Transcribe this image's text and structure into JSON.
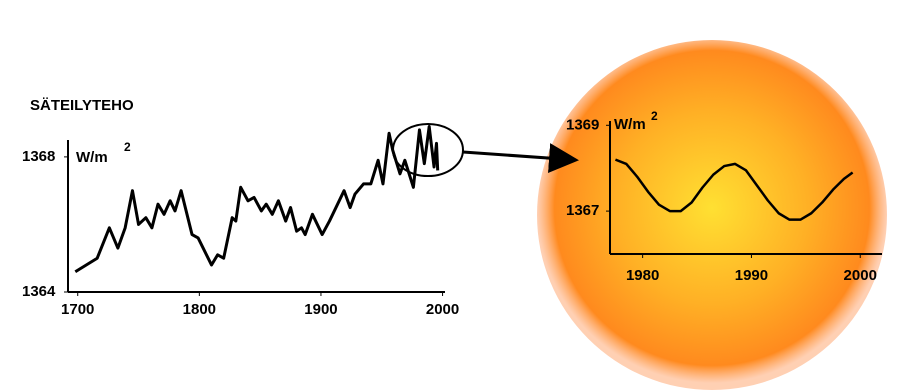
{
  "chart_data": [
    {
      "type": "line",
      "title": "SÄTEILYTEHO",
      "y_label": "W/m",
      "y_label_sup": "2",
      "x": [
        1698,
        1716,
        1726,
        1733,
        1739,
        1745,
        1750,
        1756,
        1761,
        1766,
        1771,
        1776,
        1780,
        1785,
        1794,
        1799,
        1810,
        1815,
        1820,
        1827,
        1830,
        1834,
        1840,
        1845,
        1851,
        1855,
        1860,
        1865,
        1871,
        1875,
        1880,
        1884,
        1887,
        1893,
        1901,
        1907,
        1919,
        1924,
        1928,
        1935,
        1941,
        1947,
        1951,
        1956,
        1959,
        1965,
        1969,
        1976,
        1981,
        1985,
        1989,
        1993,
        1995,
        1996
      ],
      "series": [
        {
          "color": "#000000",
          "values": [
            1364.6,
            1365.0,
            1365.9,
            1365.3,
            1365.9,
            1367.0,
            1366.0,
            1366.2,
            1365.9,
            1366.6,
            1366.3,
            1366.7,
            1366.4,
            1367.0,
            1365.7,
            1365.6,
            1364.8,
            1365.1,
            1365.0,
            1366.2,
            1366.1,
            1367.1,
            1366.7,
            1366.8,
            1366.4,
            1366.6,
            1366.3,
            1366.7,
            1366.1,
            1366.5,
            1365.8,
            1365.9,
            1365.7,
            1366.3,
            1365.7,
            1366.1,
            1367.0,
            1366.5,
            1366.9,
            1367.2,
            1367.2,
            1367.9,
            1367.2,
            1368.7,
            1368.2,
            1367.5,
            1367.9,
            1367.1,
            1368.8,
            1367.8,
            1368.9,
            1367.7,
            1368.4,
            1367.6
          ]
        }
      ],
      "xlim": [
        1692,
        2002
      ],
      "xticks": [
        1700,
        1800,
        1900,
        2000
      ],
      "ylim": [
        1364,
        1368.5
      ],
      "yticks": [
        1364,
        1368
      ]
    },
    {
      "type": "line",
      "y_label": "W/m",
      "y_label_sup": "2",
      "x": [
        1977.5,
        1978.5,
        1979.5,
        1980.5,
        1981.5,
        1982.5,
        1983.5,
        1984.5,
        1985.5,
        1986.5,
        1987.5,
        1988.5,
        1989.5,
        1990.5,
        1991.5,
        1992.5,
        1993.5,
        1994.5,
        1995.5,
        1996.5,
        1997.5,
        1998.5,
        1999.3
      ],
      "series": [
        {
          "color": "#000000",
          "values": [
            1368.2,
            1368.1,
            1367.8,
            1367.45,
            1367.15,
            1367.0,
            1367.0,
            1367.2,
            1367.55,
            1367.85,
            1368.05,
            1368.1,
            1367.95,
            1367.6,
            1367.25,
            1366.95,
            1366.8,
            1366.8,
            1366.95,
            1367.2,
            1367.5,
            1367.75,
            1367.9
          ]
        }
      ],
      "xlim": [
        1977,
        2002
      ],
      "xticks": [
        1980,
        1990,
        2000
      ],
      "ylim": [
        1366,
        1369.1
      ],
      "yticks": [
        1367,
        1369
      ]
    }
  ]
}
